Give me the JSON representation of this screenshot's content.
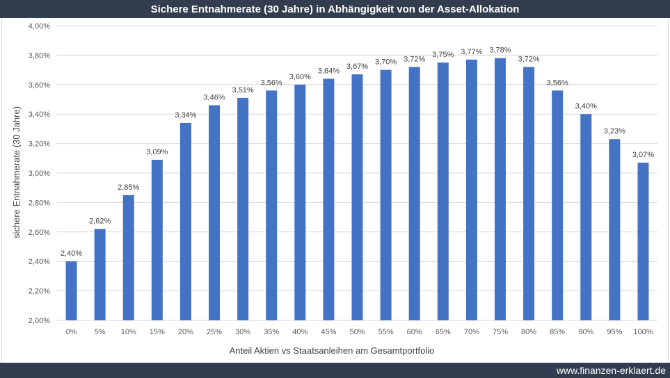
{
  "footer": {
    "site": "www.finanzen-erklaert.de"
  },
  "colors": {
    "bar": "#4472c4",
    "header": "#323e4f",
    "grid": "#d9d9d9"
  },
  "chart_data": {
    "type": "bar",
    "title": "Sichere Entnahmerate (30 Jahre) in Abhängigkeit von der Asset-Allokation",
    "xlabel": "Anteil Aktien vs Staatsanleihen am Gesamtportfolio",
    "ylabel": "sichere Entnahmerate (30 Jahre)",
    "categories": [
      "0%",
      "5%",
      "10%",
      "15%",
      "20%",
      "25%",
      "30%",
      "35%",
      "40%",
      "45%",
      "50%",
      "55%",
      "60%",
      "65%",
      "70%",
      "75%",
      "80%",
      "85%",
      "90%",
      "95%",
      "100%"
    ],
    "values": [
      2.4,
      2.62,
      2.85,
      3.09,
      3.34,
      3.46,
      3.51,
      3.56,
      3.6,
      3.64,
      3.67,
      3.7,
      3.72,
      3.75,
      3.77,
      3.78,
      3.72,
      3.56,
      3.4,
      3.23,
      3.07
    ],
    "value_labels": [
      "2,40%",
      "2,62%",
      "2,85%",
      "3,09%",
      "3,34%",
      "3,46%",
      "3,51%",
      "3,56%",
      "3,60%",
      "3,64%",
      "3,67%",
      "3,70%",
      "3,72%",
      "3,75%",
      "3,77%",
      "3,78%",
      "3,72%",
      "3,56%",
      "3,40%",
      "3,23%",
      "3,07%"
    ],
    "ylim": [
      2.0,
      4.0
    ],
    "yticks": [
      2.0,
      2.2,
      2.4,
      2.6,
      2.8,
      3.0,
      3.2,
      3.4,
      3.6,
      3.8,
      4.0
    ],
    "ytick_labels": [
      "2,00%",
      "2,20%",
      "2,40%",
      "2,60%",
      "2,80%",
      "3,00%",
      "3,20%",
      "3,40%",
      "3,60%",
      "3,80%",
      "4,00%"
    ],
    "grid": true,
    "legend": "none"
  }
}
